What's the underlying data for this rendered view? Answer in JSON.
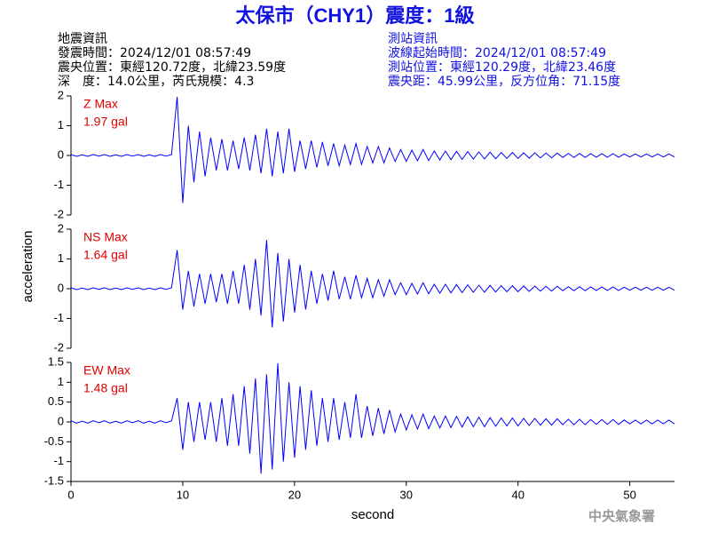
{
  "header": {
    "title": "太保市（CHY1）震度：1級",
    "left": [
      "地震資訊",
      "發震時間：2024/12/01 08:57:49",
      "震央位置：東經120.72度，北緯23.59度",
      "深　度：14.0公里，芮氏規模：4.3"
    ],
    "right": [
      "測站資訊",
      "波線起始時間：2024/12/01 08:57:49",
      "測站位置：東經120.29度，北緯23.46度",
      "震央距：45.99公里，反方位角：71.15度"
    ],
    "footer": "中央氣象署"
  },
  "chart_data": [
    {
      "type": "line",
      "annotation": "Z Max",
      "peak_label": "1.97 gal",
      "ylabel": "acceleration",
      "xlim": [
        0,
        54
      ],
      "ylim": [
        -2,
        2
      ],
      "yticks": [
        -2,
        -1,
        0,
        1,
        2
      ],
      "x": [
        0,
        0.5,
        1,
        1.5,
        2,
        2.5,
        3,
        3.5,
        4,
        4.5,
        5,
        5.5,
        6,
        6.5,
        7,
        7.5,
        8,
        8.5,
        9,
        9.5,
        10,
        10.5,
        11,
        11.5,
        12,
        12.5,
        13,
        13.5,
        14,
        14.5,
        15,
        15.5,
        16,
        16.5,
        17,
        17.5,
        18,
        18.5,
        19,
        19.5,
        20,
        20.5,
        21,
        21.5,
        22,
        22.5,
        23,
        23.5,
        24,
        24.5,
        25,
        25.5,
        26,
        26.5,
        27,
        27.5,
        28,
        28.5,
        29,
        29.5,
        30,
        30.5,
        31,
        31.5,
        32,
        32.5,
        33,
        33.5,
        34,
        34.5,
        35,
        35.5,
        36,
        36.5,
        37,
        37.5,
        38,
        38.5,
        39,
        39.5,
        40,
        40.5,
        41,
        41.5,
        42,
        42.5,
        43,
        43.5,
        44,
        44.5,
        45,
        45.5,
        46,
        46.5,
        47,
        47.5,
        48,
        48.5,
        49,
        49.5,
        50,
        50.5,
        51,
        51.5,
        52,
        52.5,
        53,
        53.5,
        54
      ],
      "series": [
        {
          "color": "#0000ff",
          "values": [
            0.03,
            -0.03,
            0.02,
            -0.03,
            0.03,
            -0.02,
            0.03,
            -0.03,
            0.02,
            -0.03,
            0.03,
            -0.02,
            0.03,
            -0.03,
            0.02,
            -0.03,
            0.03,
            -0.02,
            0.03,
            1.97,
            -1.6,
            1.0,
            -0.9,
            0.8,
            -0.7,
            0.6,
            -0.5,
            0.55,
            -0.5,
            0.5,
            -0.45,
            0.6,
            -0.5,
            0.7,
            -0.6,
            0.9,
            -0.7,
            0.8,
            -0.6,
            0.9,
            -0.55,
            0.5,
            -0.45,
            0.5,
            -0.4,
            0.45,
            -0.35,
            0.4,
            -0.35,
            0.35,
            -0.3,
            0.4,
            -0.3,
            0.3,
            -0.25,
            0.3,
            -0.25,
            0.25,
            -0.2,
            0.2,
            -0.2,
            0.18,
            -0.18,
            0.2,
            -0.17,
            0.15,
            -0.15,
            0.15,
            -0.14,
            0.14,
            -0.13,
            0.13,
            -0.12,
            0.12,
            -0.12,
            0.11,
            -0.11,
            0.1,
            -0.1,
            0.1,
            -0.1,
            0.09,
            -0.09,
            0.09,
            -0.08,
            0.08,
            -0.08,
            0.08,
            -0.07,
            0.07,
            -0.07,
            0.07,
            -0.07,
            0.06,
            -0.06,
            0.06,
            -0.06,
            0.06,
            -0.06,
            0.05,
            -0.05,
            0.05,
            -0.05,
            0.05,
            -0.05,
            0.05,
            -0.05,
            0.05,
            -0.05
          ]
        }
      ]
    },
    {
      "type": "line",
      "annotation": "NS Max",
      "peak_label": "1.64 gal",
      "xlim": [
        0,
        54
      ],
      "ylim": [
        -2,
        2
      ],
      "yticks": [
        -2,
        -1,
        0,
        1,
        2
      ],
      "x": [
        0,
        0.5,
        1,
        1.5,
        2,
        2.5,
        3,
        3.5,
        4,
        4.5,
        5,
        5.5,
        6,
        6.5,
        7,
        7.5,
        8,
        8.5,
        9,
        9.5,
        10,
        10.5,
        11,
        11.5,
        12,
        12.5,
        13,
        13.5,
        14,
        14.5,
        15,
        15.5,
        16,
        16.5,
        17,
        17.5,
        18,
        18.5,
        19,
        19.5,
        20,
        20.5,
        21,
        21.5,
        22,
        22.5,
        23,
        23.5,
        24,
        24.5,
        25,
        25.5,
        26,
        26.5,
        27,
        27.5,
        28,
        28.5,
        29,
        29.5,
        30,
        30.5,
        31,
        31.5,
        32,
        32.5,
        33,
        33.5,
        34,
        34.5,
        35,
        35.5,
        36,
        36.5,
        37,
        37.5,
        38,
        38.5,
        39,
        39.5,
        40,
        40.5,
        41,
        41.5,
        42,
        42.5,
        43,
        43.5,
        44,
        44.5,
        45,
        45.5,
        46,
        46.5,
        47,
        47.5,
        48,
        48.5,
        49,
        49.5,
        50,
        50.5,
        51,
        51.5,
        52,
        52.5,
        53,
        53.5,
        54
      ],
      "series": [
        {
          "color": "#0000ff",
          "values": [
            0.03,
            -0.03,
            0.02,
            -0.03,
            0.03,
            -0.02,
            0.03,
            -0.03,
            0.02,
            -0.03,
            0.03,
            -0.02,
            0.03,
            -0.03,
            0.02,
            -0.03,
            0.03,
            -0.02,
            0.03,
            1.3,
            -0.7,
            0.6,
            -0.6,
            0.5,
            -0.5,
            0.5,
            -0.45,
            0.5,
            -0.5,
            0.6,
            -0.5,
            0.8,
            -0.7,
            1.0,
            -0.9,
            1.64,
            -1.3,
            1.2,
            -1.1,
            1.0,
            -0.8,
            0.8,
            -0.7,
            0.6,
            -0.5,
            0.5,
            -0.4,
            0.6,
            -0.35,
            0.4,
            -0.35,
            0.45,
            -0.3,
            0.35,
            -0.3,
            0.3,
            -0.25,
            0.3,
            -0.2,
            0.2,
            -0.2,
            0.18,
            -0.18,
            0.2,
            -0.17,
            0.15,
            -0.15,
            0.15,
            -0.14,
            0.14,
            -0.13,
            0.13,
            -0.12,
            0.12,
            -0.12,
            0.11,
            -0.11,
            0.1,
            -0.1,
            0.1,
            -0.1,
            0.09,
            -0.09,
            0.09,
            -0.08,
            0.08,
            -0.08,
            0.08,
            -0.07,
            0.07,
            -0.07,
            0.07,
            -0.07,
            0.06,
            -0.06,
            0.06,
            -0.06,
            0.06,
            -0.06,
            0.05,
            -0.05,
            0.05,
            -0.05,
            0.05,
            -0.05,
            0.05,
            -0.05,
            0.05,
            -0.05
          ]
        }
      ]
    },
    {
      "type": "line",
      "annotation": "EW Max",
      "peak_label": "1.48 gal",
      "xlabel": "second",
      "xlim": [
        0,
        54
      ],
      "ylim": [
        -1.5,
        1.5
      ],
      "yticks": [
        -1.5,
        -1,
        -0.5,
        0,
        0.5,
        1,
        1.5
      ],
      "xticks": [
        0,
        10,
        20,
        30,
        40,
        50
      ],
      "x": [
        0,
        0.5,
        1,
        1.5,
        2,
        2.5,
        3,
        3.5,
        4,
        4.5,
        5,
        5.5,
        6,
        6.5,
        7,
        7.5,
        8,
        8.5,
        9,
        9.5,
        10,
        10.5,
        11,
        11.5,
        12,
        12.5,
        13,
        13.5,
        14,
        14.5,
        15,
        15.5,
        16,
        16.5,
        17,
        17.5,
        18,
        18.5,
        19,
        19.5,
        20,
        20.5,
        21,
        21.5,
        22,
        22.5,
        23,
        23.5,
        24,
        24.5,
        25,
        25.5,
        26,
        26.5,
        27,
        27.5,
        28,
        28.5,
        29,
        29.5,
        30,
        30.5,
        31,
        31.5,
        32,
        32.5,
        33,
        33.5,
        34,
        34.5,
        35,
        35.5,
        36,
        36.5,
        37,
        37.5,
        38,
        38.5,
        39,
        39.5,
        40,
        40.5,
        41,
        41.5,
        42,
        42.5,
        43,
        43.5,
        44,
        44.5,
        45,
        45.5,
        46,
        46.5,
        47,
        47.5,
        48,
        48.5,
        49,
        49.5,
        50,
        50.5,
        51,
        51.5,
        52,
        52.5,
        53,
        53.5,
        54
      ],
      "series": [
        {
          "color": "#0000ff",
          "values": [
            0.03,
            -0.03,
            0.02,
            -0.03,
            0.03,
            -0.02,
            0.03,
            -0.03,
            0.02,
            -0.03,
            0.03,
            -0.02,
            0.03,
            -0.03,
            0.02,
            -0.03,
            0.03,
            -0.02,
            0.03,
            0.6,
            -0.7,
            0.5,
            -0.5,
            0.5,
            -0.45,
            0.5,
            -0.5,
            0.6,
            -0.6,
            0.7,
            -0.6,
            0.9,
            -0.8,
            1.1,
            -1.3,
            1.2,
            -1.2,
            1.48,
            -1.0,
            1.0,
            -0.9,
            0.9,
            -0.7,
            0.8,
            -0.6,
            0.6,
            -0.5,
            0.6,
            -0.45,
            0.5,
            -0.4,
            0.7,
            -0.4,
            0.4,
            -0.35,
            0.35,
            -0.3,
            0.3,
            -0.25,
            0.2,
            -0.2,
            0.18,
            -0.18,
            0.2,
            -0.17,
            0.15,
            -0.15,
            0.15,
            -0.14,
            0.14,
            -0.13,
            0.13,
            -0.12,
            0.12,
            -0.12,
            0.11,
            -0.11,
            0.1,
            -0.1,
            0.1,
            -0.1,
            0.09,
            -0.09,
            0.09,
            -0.08,
            0.08,
            -0.08,
            0.08,
            -0.07,
            0.07,
            -0.07,
            0.07,
            -0.07,
            0.06,
            -0.06,
            0.06,
            -0.06,
            0.06,
            -0.06,
            0.05,
            -0.05,
            0.05,
            -0.05,
            0.05,
            -0.05,
            0.05,
            -0.05,
            0.05,
            -0.05
          ]
        }
      ]
    }
  ]
}
